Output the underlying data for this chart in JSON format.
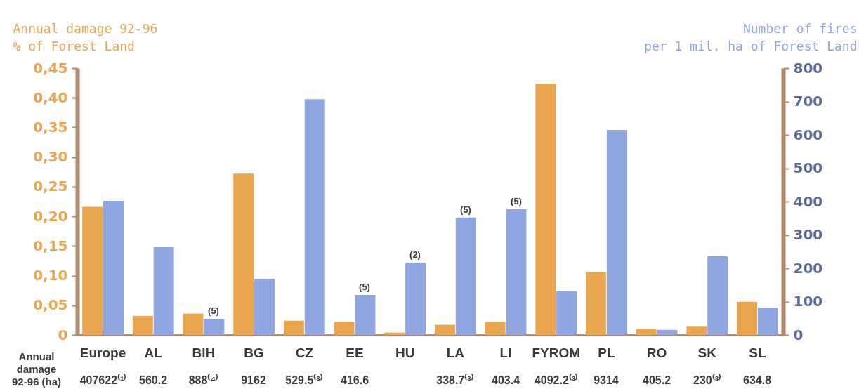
{
  "chart_data": {
    "type": "bar",
    "ylabel": "Annual damage 92-96\n% of Forest Land",
    "y2label": "Number of fires\nper 1 mil. ha of Forest Land",
    "categories": [
      "Europe",
      "AL",
      "BiH",
      "BG",
      "CZ",
      "EE",
      "HU",
      "LA",
      "LI",
      "FYROM",
      "PL",
      "RO",
      "SK",
      "SL"
    ],
    "series": [
      {
        "color": "#e9a64f",
        "values": [
          0.216,
          0.032,
          0.036,
          0.272,
          0.024,
          0.022,
          0.004,
          0.017,
          0.022,
          0.424,
          0.106,
          0.01,
          0.015,
          0.056
        ]
      },
      {
        "color": "#8fa6e0",
        "axis": "y2",
        "values": [
          402,
          263,
          48,
          168,
          707,
          120,
          217,
          352,
          377,
          131,
          615,
          15,
          236,
          82
        ]
      }
    ],
    "ylim": [
      0,
      0.45
    ],
    "yticks": [
      0,
      {
        "value": 0.05,
        "label": "0,05"
      },
      {
        "value": 0.1,
        "label": "0,10"
      },
      {
        "value": 0.15,
        "label": "0,15"
      },
      {
        "value": 0.2,
        "label": "0,20"
      },
      {
        "value": 0.25,
        "label": "0,25"
      },
      {
        "value": 0.3,
        "label": "0,30"
      },
      {
        "value": 0.35,
        "label": "0,35"
      },
      {
        "value": 0.4,
        "label": "0,40"
      },
      {
        "value": 0.45,
        "label": "0,45"
      }
    ],
    "y2lim": [
      0,
      800
    ],
    "y2ticks": [
      0,
      100,
      200,
      300,
      400,
      500,
      600,
      700,
      800
    ],
    "annotations": [
      "(5)",
      "(5)",
      "(2)",
      "(5)",
      "(5)",
      "Annual\ndamage\n92-96 (ha)",
      "407622⁽¹⁾",
      "560.2",
      "888⁽⁴⁾",
      "9162",
      "529.5⁽³⁾",
      "416.6",
      "338.7⁽³⁾",
      "403.4",
      "4092.2⁽³⁾",
      "9314",
      "405.2",
      "230⁽³⁾",
      "634.8"
    ],
    "grid": false
  }
}
